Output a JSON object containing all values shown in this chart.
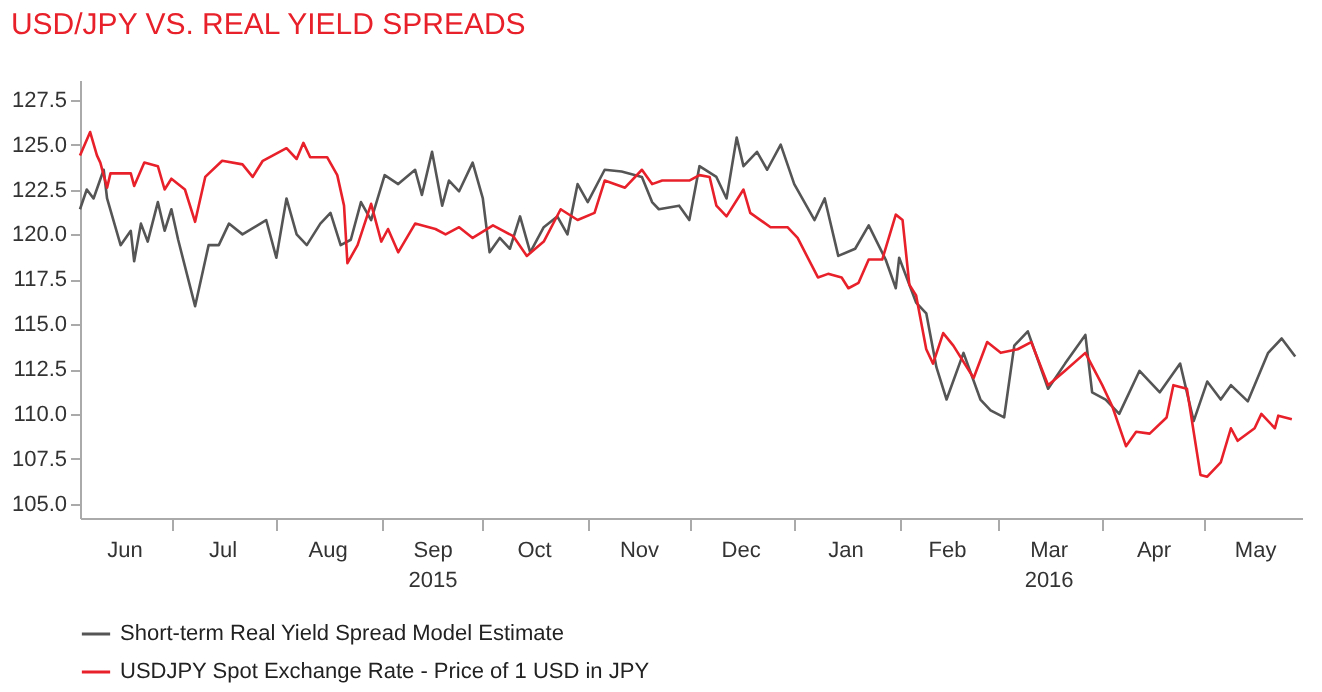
{
  "chart_data": {
    "type": "line",
    "title": "USD/JPY VS. REAL YIELD SPREADS",
    "xlim": [
      "2015-06-04",
      "2016-05-30"
    ],
    "xticks": [
      {
        "value": "2015-06-17",
        "label": "Jun"
      },
      {
        "value": "2015-07-01",
        "label": null
      },
      {
        "value": "2015-07-16",
        "label": "Jul"
      },
      {
        "value": "2015-08-01",
        "label": null
      },
      {
        "value": "2015-08-16",
        "label": "Aug"
      },
      {
        "value": "2015-09-01",
        "label": null
      },
      {
        "value": "2015-09-16",
        "label": "Sep\n2015"
      },
      {
        "value": "2015-10-01",
        "label": null
      },
      {
        "value": "2015-10-16",
        "label": "Oct"
      },
      {
        "value": "2015-11-01",
        "label": null
      },
      {
        "value": "2015-11-16",
        "label": "Nov"
      },
      {
        "value": "2015-12-01",
        "label": null
      },
      {
        "value": "2015-12-16",
        "label": "Dec"
      },
      {
        "value": "2016-01-01",
        "label": null
      },
      {
        "value": "2016-01-16",
        "label": "Jan"
      },
      {
        "value": "2016-02-01",
        "label": null
      },
      {
        "value": "2016-02-15",
        "label": "Feb"
      },
      {
        "value": "2016-03-01",
        "label": null
      },
      {
        "value": "2016-03-16",
        "label": "Mar\n2016"
      },
      {
        "value": "2016-04-01",
        "label": null
      },
      {
        "value": "2016-04-16",
        "label": "Apr"
      },
      {
        "value": "2016-05-01",
        "label": null
      },
      {
        "value": "2016-05-16",
        "label": "May"
      }
    ],
    "ylim": [
      104.2,
      128.6
    ],
    "yticks": [
      {
        "value": 105,
        "label": "105.0"
      },
      {
        "value": 107.5,
        "label": "107.5"
      },
      {
        "value": 110,
        "label": "110.0"
      },
      {
        "value": 112.5,
        "label": "112.5"
      },
      {
        "value": 115,
        "label": "115.0"
      },
      {
        "value": 117.5,
        "label": "117.5"
      },
      {
        "value": 120,
        "label": "120.0"
      },
      {
        "value": 122.5,
        "label": "122.5"
      },
      {
        "value": 125,
        "label": "125.0"
      },
      {
        "value": 127.5,
        "label": "127.5"
      }
    ],
    "grid": false,
    "legend": "bottom",
    "marker": "none",
    "line_style": "solid",
    "series": [
      {
        "name": "Short-term Real Yield Spread Model Estimate",
        "color": "#555555",
        "x": [
          "2015-06-04",
          "2015-06-06",
          "2015-06-08",
          "2015-06-11",
          "2015-06-12",
          "2015-06-16",
          "2015-06-19",
          "2015-06-20",
          "2015-06-22",
          "2015-06-24",
          "2015-06-27",
          "2015-06-29",
          "2015-07-01",
          "2015-07-03",
          "2015-07-08",
          "2015-07-12",
          "2015-07-15",
          "2015-07-18",
          "2015-07-22",
          "2015-07-29",
          "2015-08-01",
          "2015-08-04",
          "2015-08-07",
          "2015-08-10",
          "2015-08-14",
          "2015-08-17",
          "2015-08-20",
          "2015-08-23",
          "2015-08-26",
          "2015-08-29",
          "2015-09-02",
          "2015-09-06",
          "2015-09-11",
          "2015-09-13",
          "2015-09-16",
          "2015-09-19",
          "2015-09-21",
          "2015-09-24",
          "2015-09-28",
          "2015-10-01",
          "2015-10-03",
          "2015-10-06",
          "2015-10-09",
          "2015-10-12",
          "2015-10-15",
          "2015-10-19",
          "2015-10-23",
          "2015-10-26",
          "2015-10-29",
          "2015-11-01",
          "2015-11-06",
          "2015-11-11",
          "2015-11-17",
          "2015-11-20",
          "2015-11-22",
          "2015-11-28",
          "2015-12-01",
          "2015-12-04",
          "2015-12-09",
          "2015-12-12",
          "2015-12-15",
          "2015-12-17",
          "2015-12-21",
          "2015-12-24",
          "2015-12-28",
          "2016-01-01",
          "2016-01-07",
          "2016-01-10",
          "2016-01-14",
          "2016-01-19",
          "2016-01-23",
          "2016-01-28",
          "2016-01-31",
          "2016-02-01",
          "2016-02-06",
          "2016-02-09",
          "2016-02-12",
          "2016-02-15",
          "2016-02-20",
          "2016-02-25",
          "2016-02-28",
          "2016-03-03",
          "2016-03-06",
          "2016-03-10",
          "2016-03-16",
          "2016-03-21",
          "2016-03-27",
          "2016-03-29",
          "2016-04-02",
          "2016-04-06",
          "2016-04-12",
          "2016-04-18",
          "2016-04-24",
          "2016-04-28",
          "2016-05-02",
          "2016-05-06",
          "2016-05-09",
          "2016-05-14",
          "2016-05-20",
          "2016-05-24",
          "2016-05-28"
        ],
        "values": [
          121.4,
          122.5,
          122.0,
          123.6,
          122.0,
          119.4,
          120.2,
          118.5,
          120.6,
          119.6,
          121.8,
          120.2,
          121.4,
          119.7,
          116.0,
          119.4,
          119.4,
          120.6,
          120.0,
          120.8,
          118.7,
          122.0,
          120.0,
          119.4,
          120.6,
          121.2,
          119.4,
          119.7,
          121.8,
          120.8,
          123.3,
          122.8,
          123.6,
          122.2,
          124.6,
          121.6,
          123.0,
          122.4,
          124.0,
          122.0,
          119.0,
          119.8,
          119.2,
          121.0,
          119.0,
          120.4,
          121.0,
          120.0,
          122.8,
          121.8,
          123.6,
          123.5,
          123.2,
          121.8,
          121.4,
          121.6,
          120.8,
          123.8,
          123.2,
          122.0,
          125.4,
          123.8,
          124.6,
          123.6,
          125.0,
          122.8,
          120.8,
          122.0,
          118.8,
          119.2,
          120.5,
          118.6,
          117.0,
          118.7,
          116.2,
          115.6,
          112.6,
          110.8,
          113.4,
          110.8,
          110.2,
          109.8,
          113.8,
          114.6,
          111.4,
          112.8,
          114.4,
          111.2,
          110.8,
          110.0,
          112.4,
          111.2,
          112.8,
          109.6,
          111.8,
          110.8,
          111.6,
          110.7,
          113.4,
          114.2,
          113.2
        ]
      },
      {
        "name": "USDJPY Spot Exchange Rate - Price of 1 USD in JPY",
        "color": "#e8202a",
        "x": [
          "2015-06-04",
          "2015-06-07",
          "2015-06-09",
          "2015-06-10",
          "2015-06-12",
          "2015-06-13",
          "2015-06-19",
          "2015-06-20",
          "2015-06-23",
          "2015-06-27",
          "2015-06-29",
          "2015-07-01",
          "2015-07-05",
          "2015-07-08",
          "2015-07-11",
          "2015-07-16",
          "2015-07-22",
          "2015-07-25",
          "2015-07-28",
          "2015-08-04",
          "2015-08-07",
          "2015-08-09",
          "2015-08-11",
          "2015-08-16",
          "2015-08-19",
          "2015-08-21",
          "2015-08-22",
          "2015-08-25",
          "2015-08-29",
          "2015-09-01",
          "2015-09-03",
          "2015-09-06",
          "2015-09-11",
          "2015-09-17",
          "2015-09-20",
          "2015-09-24",
          "2015-09-28",
          "2015-10-04",
          "2015-10-10",
          "2015-10-14",
          "2015-10-19",
          "2015-10-24",
          "2015-10-29",
          "2015-11-03",
          "2015-11-06",
          "2015-11-12",
          "2015-11-17",
          "2015-11-20",
          "2015-11-23",
          "2015-12-01",
          "2015-12-04",
          "2015-12-07",
          "2015-12-09",
          "2015-12-12",
          "2015-12-17",
          "2015-12-19",
          "2015-12-25",
          "2015-12-30",
          "2016-01-02",
          "2016-01-08",
          "2016-01-11",
          "2016-01-15",
          "2016-01-17",
          "2016-01-20",
          "2016-01-23",
          "2016-01-27",
          "2016-01-31",
          "2016-02-02",
          "2016-02-04",
          "2016-02-06",
          "2016-02-09",
          "2016-02-11",
          "2016-02-14",
          "2016-02-17",
          "2016-02-23",
          "2016-02-27",
          "2016-03-02",
          "2016-03-07",
          "2016-03-11",
          "2016-03-16",
          "2016-03-21",
          "2016-03-27",
          "2016-04-01",
          "2016-04-04",
          "2016-04-08",
          "2016-04-11",
          "2016-04-15",
          "2016-04-20",
          "2016-04-22",
          "2016-04-26",
          "2016-04-30",
          "2016-05-02",
          "2016-05-06",
          "2016-05-09",
          "2016-05-11",
          "2016-05-16",
          "2016-05-18",
          "2016-05-22",
          "2016-05-23",
          "2016-05-27"
        ],
        "values": [
          124.4,
          125.7,
          124.4,
          124.0,
          122.6,
          123.4,
          123.4,
          122.7,
          124.0,
          123.8,
          122.5,
          123.1,
          122.5,
          120.7,
          123.2,
          124.1,
          123.9,
          123.2,
          124.1,
          124.8,
          124.2,
          125.1,
          124.3,
          124.3,
          123.3,
          121.6,
          118.4,
          119.4,
          121.7,
          119.6,
          120.3,
          119.0,
          120.6,
          120.3,
          120.0,
          120.4,
          119.8,
          120.5,
          119.9,
          118.8,
          119.6,
          121.4,
          120.8,
          121.2,
          123.0,
          122.6,
          123.6,
          122.8,
          123.0,
          123.0,
          123.3,
          123.2,
          121.6,
          121.0,
          122.5,
          121.2,
          120.4,
          120.4,
          119.8,
          117.6,
          117.8,
          117.6,
          117.0,
          117.3,
          118.6,
          118.6,
          121.1,
          120.8,
          117.2,
          116.6,
          113.6,
          112.8,
          114.5,
          113.8,
          112.0,
          114.0,
          113.4,
          113.6,
          114.0,
          111.6,
          112.4,
          113.4,
          111.6,
          110.4,
          108.2,
          109.0,
          108.9,
          109.8,
          111.6,
          111.4,
          106.6,
          106.5,
          107.3,
          109.2,
          108.5,
          109.2,
          110.0,
          109.2,
          109.9,
          109.7
        ]
      }
    ]
  }
}
